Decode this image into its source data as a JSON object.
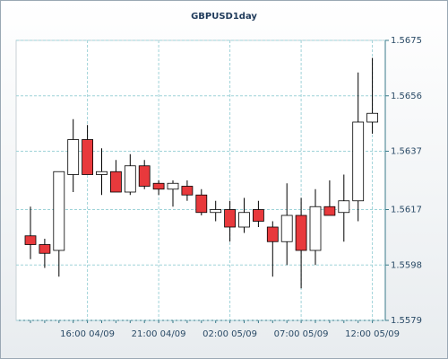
{
  "chart_data": {
    "type": "candlestick",
    "title": "GBPUSD1day",
    "categories": [
      null,
      null,
      null,
      null,
      "16:00 04/09",
      null,
      null,
      null,
      null,
      "21:00 04/09",
      null,
      null,
      null,
      null,
      "02:00 05/09",
      null,
      null,
      null,
      null,
      "07:00 05/09",
      null,
      null,
      null,
      null,
      "12:00 05/09"
    ],
    "open": [
      1.5608,
      1.5605,
      1.5603,
      1.5629,
      1.5641,
      1.5629,
      1.563,
      1.5623,
      1.5632,
      1.5626,
      1.5624,
      1.5625,
      1.5622,
      1.5616,
      1.5617,
      1.5611,
      1.5617,
      1.5611,
      1.5606,
      1.5615,
      1.5603,
      1.5618,
      1.5616,
      1.562,
      1.5647
    ],
    "high": [
      1.5618,
      1.5607,
      1.563,
      1.5648,
      1.5646,
      1.5638,
      1.5634,
      1.5636,
      1.5634,
      1.5627,
      1.5627,
      1.5627,
      1.5624,
      1.562,
      1.562,
      1.5621,
      1.562,
      1.5613,
      1.5626,
      1.5621,
      1.5624,
      1.5627,
      1.5629,
      1.5664,
      1.5669
    ],
    "low": [
      1.56,
      1.5597,
      1.5594,
      1.5623,
      1.5629,
      1.5622,
      1.5623,
      1.5622,
      1.5624,
      1.5622,
      1.5618,
      1.562,
      1.5615,
      1.5613,
      1.5606,
      1.5609,
      1.5611,
      1.5594,
      1.5598,
      1.559,
      1.5598,
      1.5615,
      1.5606,
      1.5613,
      1.5643
    ],
    "close": [
      1.5605,
      1.5602,
      1.563,
      1.5641,
      1.5629,
      1.563,
      1.5623,
      1.5632,
      1.5625,
      1.5624,
      1.5626,
      1.5622,
      1.5616,
      1.5617,
      1.5611,
      1.5616,
      1.5613,
      1.5606,
      1.5615,
      1.5603,
      1.5618,
      1.5615,
      1.562,
      1.5647,
      1.565
    ],
    "up_color": "#ffffff",
    "down_color": "#e8393c",
    "ylim": [
      1.5579,
      1.5675
    ],
    "yticks": [
      1.5579,
      1.5598,
      1.5617,
      1.5637,
      1.5656,
      1.5675
    ],
    "grid": true
  }
}
